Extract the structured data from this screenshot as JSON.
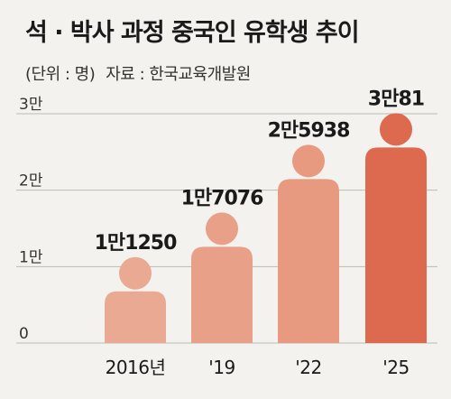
{
  "header": {
    "title": "석 · 박사 과정 중국인 유학생 추이",
    "unit_label": "(단위 : 명)",
    "source_label": "자료 : 한국교육개발원"
  },
  "colors": {
    "background": "#f4f2ee",
    "grid": "#bdbab5",
    "bars": [
      "#eaa992",
      "#e8a088",
      "#e89a80",
      "#dd6a4f"
    ]
  },
  "chart_data": {
    "type": "bar",
    "title": "석 · 박사 과정 중국인 유학생 추이",
    "categories": [
      "2016년",
      "'19",
      "'22",
      "'25"
    ],
    "values": [
      11250,
      17076,
      25938,
      30081
    ],
    "value_labels": [
      "1만1250",
      "1만7076",
      "2만5938",
      "3만81"
    ],
    "y_ticks": [
      0,
      10000,
      20000,
      30000
    ],
    "y_tick_labels": [
      "0",
      "1만",
      "2만",
      "3만"
    ],
    "ylim": [
      0,
      30000
    ],
    "grid": true,
    "unit": "명",
    "source": "한국교육개발원",
    "bar_style": "person-silhouette"
  }
}
